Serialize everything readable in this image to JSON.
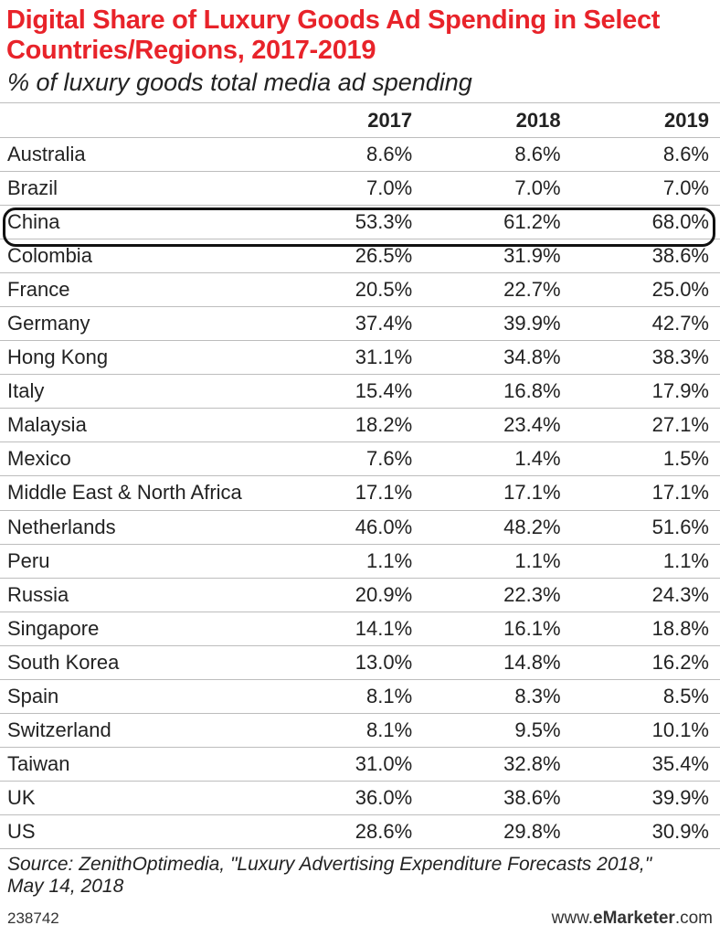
{
  "chart_data": {
    "type": "table",
    "title_line1": "Digital Share of Luxury Goods Ad Spending in Select",
    "title_line2": "Countries/Regions, 2017-2019",
    "subtitle": "% of luxury goods total media ad spending",
    "title_color": "#e8232a",
    "highlight_row": "China",
    "columns": [
      "",
      "2017",
      "2018",
      "2019"
    ],
    "rows": [
      {
        "region": "Australia",
        "values": [
          "8.6%",
          "8.6%",
          "8.6%"
        ]
      },
      {
        "region": "Brazil",
        "values": [
          "7.0%",
          "7.0%",
          "7.0%"
        ]
      },
      {
        "region": "China",
        "values": [
          "53.3%",
          "61.2%",
          "68.0%"
        ]
      },
      {
        "region": "Colombia",
        "values": [
          "26.5%",
          "31.9%",
          "38.6%"
        ]
      },
      {
        "region": "France",
        "values": [
          "20.5%",
          "22.7%",
          "25.0%"
        ]
      },
      {
        "region": "Germany",
        "values": [
          "37.4%",
          "39.9%",
          "42.7%"
        ]
      },
      {
        "region": "Hong Kong",
        "values": [
          "31.1%",
          "34.8%",
          "38.3%"
        ]
      },
      {
        "region": "Italy",
        "values": [
          "15.4%",
          "16.8%",
          "17.9%"
        ]
      },
      {
        "region": "Malaysia",
        "values": [
          "18.2%",
          "23.4%",
          "27.1%"
        ]
      },
      {
        "region": "Mexico",
        "values": [
          "7.6%",
          "1.4%",
          "1.5%"
        ]
      },
      {
        "region": "Middle East & North Africa",
        "values": [
          "17.1%",
          "17.1%",
          "17.1%"
        ]
      },
      {
        "region": "Netherlands",
        "values": [
          "46.0%",
          "48.2%",
          "51.6%"
        ]
      },
      {
        "region": "Peru",
        "values": [
          "1.1%",
          "1.1%",
          "1.1%"
        ]
      },
      {
        "region": "Russia",
        "values": [
          "20.9%",
          "22.3%",
          "24.3%"
        ]
      },
      {
        "region": "Singapore",
        "values": [
          "14.1%",
          "16.1%",
          "18.8%"
        ]
      },
      {
        "region": "South Korea",
        "values": [
          "13.0%",
          "14.8%",
          "16.2%"
        ]
      },
      {
        "region": "Spain",
        "values": [
          "8.1%",
          "8.3%",
          "8.5%"
        ]
      },
      {
        "region": "Switzerland",
        "values": [
          "8.1%",
          "9.5%",
          "10.1%"
        ]
      },
      {
        "region": "Taiwan",
        "values": [
          "31.0%",
          "32.8%",
          "35.4%"
        ]
      },
      {
        "region": "UK",
        "values": [
          "36.0%",
          "38.6%",
          "39.9%"
        ]
      },
      {
        "region": "US",
        "values": [
          "28.6%",
          "29.8%",
          "30.9%"
        ]
      }
    ],
    "source_line1": "Source: ZenithOptimedia, \"Luxury Advertising Expenditure Forecasts 2018,\"",
    "source_line2": "May 14, 2018"
  },
  "footer": {
    "chart_id": "238742",
    "brand_prefix": "www.",
    "brand_name": "eMarketer",
    "brand_suffix": ".com"
  }
}
